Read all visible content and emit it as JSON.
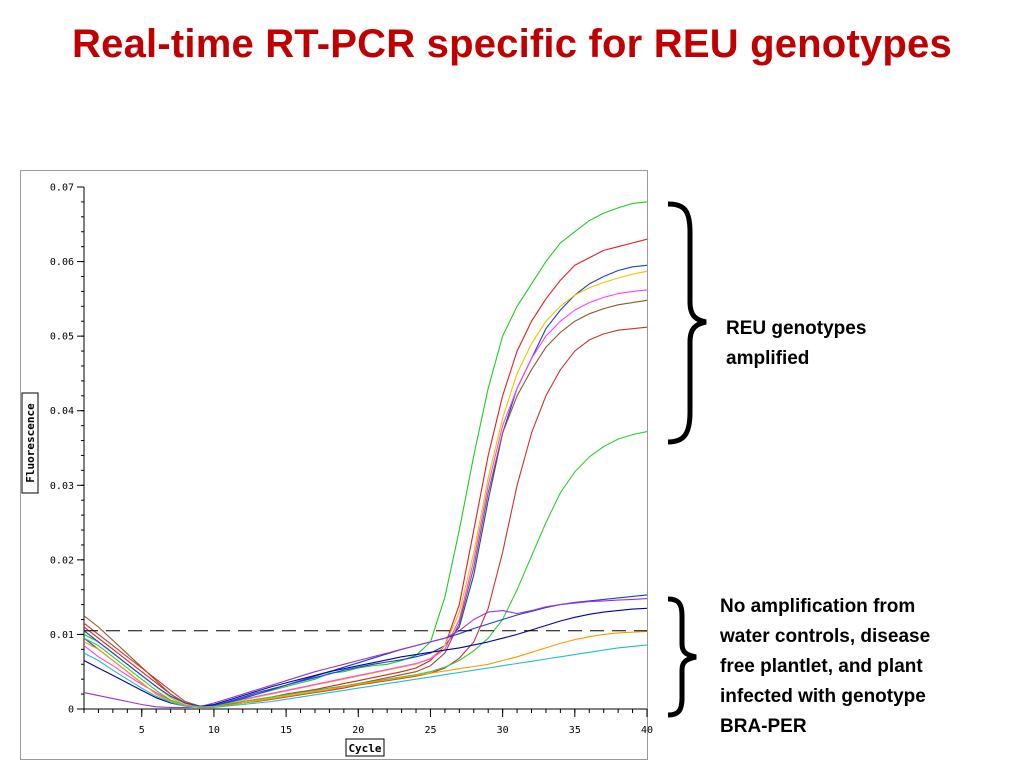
{
  "slide": {
    "title": "Real-time RT-PCR specific for REU genotypes",
    "annotation_amplified": [
      "REU genotypes",
      "amplified"
    ],
    "annotation_not_amplified": [
      "No amplification from",
      "water controls, disease",
      "free plantlet, and plant",
      "infected with genotype",
      "BRA-PER"
    ]
  },
  "chart_data": {
    "type": "line",
    "xlabel": "Cycle",
    "ylabel": "Fluorescence",
    "xlim": [
      1,
      40
    ],
    "ylim": [
      0,
      0.07
    ],
    "xticks": [
      5,
      10,
      15,
      20,
      25,
      30,
      35,
      40
    ],
    "xtick_labels": [
      "5",
      "10",
      "15",
      "20",
      "25",
      "30",
      "35",
      "40"
    ],
    "yticks": [
      0,
      0.01,
      0.02,
      0.03,
      0.04,
      0.05,
      0.06,
      0.07
    ],
    "ytick_labels": [
      "0",
      "0.01",
      "0.02",
      "0.03",
      "0.04",
      "0.05",
      "0.06",
      "0.07"
    ],
    "threshold": 0.0105,
    "grid": false,
    "x": [
      1,
      2,
      3,
      4,
      5,
      6,
      7,
      8,
      9,
      10,
      11,
      12,
      13,
      14,
      15,
      16,
      17,
      18,
      19,
      20,
      21,
      22,
      23,
      24,
      25,
      26,
      27,
      28,
      29,
      30,
      31,
      32,
      33,
      34,
      35,
      36,
      37,
      38,
      39,
      40
    ],
    "series": [
      {
        "color": "#22cc22",
        "values": [
          0.01,
          0.009,
          0.0075,
          0.006,
          0.0045,
          0.003,
          0.0015,
          0.0005,
          0.0002,
          0.0004,
          0.001,
          0.0015,
          0.002,
          0.0025,
          0.003,
          0.0035,
          0.004,
          0.0048,
          0.005,
          0.0055,
          0.0058,
          0.006,
          0.0065,
          0.0072,
          0.009,
          0.015,
          0.024,
          0.034,
          0.043,
          0.05,
          0.054,
          0.057,
          0.06,
          0.0625,
          0.064,
          0.0655,
          0.0665,
          0.0672,
          0.0678,
          0.068
        ]
      },
      {
        "color": "#e02020",
        "values": [
          0.011,
          0.0095,
          0.008,
          0.0065,
          0.005,
          0.0035,
          0.002,
          0.0008,
          0.0003,
          0.0003,
          0.0006,
          0.001,
          0.0013,
          0.0016,
          0.002,
          0.0023,
          0.0026,
          0.003,
          0.0034,
          0.0038,
          0.0042,
          0.0046,
          0.005,
          0.0055,
          0.0065,
          0.0085,
          0.014,
          0.024,
          0.034,
          0.042,
          0.048,
          0.052,
          0.055,
          0.0575,
          0.0595,
          0.0605,
          0.0615,
          0.062,
          0.0625,
          0.063
        ]
      },
      {
        "color": "#1a3fd6",
        "values": [
          0.0095,
          0.008,
          0.0065,
          0.005,
          0.0035,
          0.002,
          0.001,
          0.0004,
          0.0003,
          0.0005,
          0.001,
          0.0016,
          0.0022,
          0.0027,
          0.0032,
          0.0037,
          0.0042,
          0.0047,
          0.0052,
          0.0056,
          0.006,
          0.0063,
          0.0066,
          0.007,
          0.0075,
          0.0085,
          0.011,
          0.018,
          0.028,
          0.037,
          0.043,
          0.047,
          0.051,
          0.0535,
          0.0555,
          0.057,
          0.058,
          0.0588,
          0.0593,
          0.0595
        ]
      },
      {
        "color": "#e8c800",
        "values": [
          0.0105,
          0.009,
          0.0075,
          0.006,
          0.0045,
          0.003,
          0.0015,
          0.0006,
          0.0003,
          0.0004,
          0.0008,
          0.0012,
          0.0016,
          0.002,
          0.0024,
          0.0028,
          0.0032,
          0.0036,
          0.004,
          0.0044,
          0.0048,
          0.0052,
          0.0056,
          0.006,
          0.0068,
          0.0085,
          0.013,
          0.021,
          0.031,
          0.039,
          0.045,
          0.049,
          0.052,
          0.054,
          0.0555,
          0.0565,
          0.0572,
          0.0578,
          0.0583,
          0.0587
        ]
      },
      {
        "color": "#ff40ff",
        "values": [
          0.0085,
          0.007,
          0.0058,
          0.0045,
          0.0033,
          0.0022,
          0.0012,
          0.0005,
          0.0003,
          0.0005,
          0.0009,
          0.0013,
          0.0017,
          0.0021,
          0.0025,
          0.0029,
          0.0033,
          0.0037,
          0.0041,
          0.0045,
          0.0049,
          0.0053,
          0.0057,
          0.0061,
          0.0067,
          0.008,
          0.012,
          0.02,
          0.03,
          0.038,
          0.043,
          0.047,
          0.05,
          0.052,
          0.0535,
          0.0545,
          0.0552,
          0.0557,
          0.056,
          0.0562
        ]
      },
      {
        "color": "#8b5a2b",
        "values": [
          0.0125,
          0.011,
          0.0092,
          0.0074,
          0.0056,
          0.0038,
          0.002,
          0.0008,
          0.0003,
          0.0003,
          0.0005,
          0.0008,
          0.0011,
          0.0014,
          0.0017,
          0.002,
          0.0023,
          0.0026,
          0.003,
          0.0034,
          0.0038,
          0.0042,
          0.0046,
          0.005,
          0.0058,
          0.0075,
          0.0115,
          0.019,
          0.029,
          0.037,
          0.042,
          0.0455,
          0.0485,
          0.0505,
          0.052,
          0.053,
          0.0537,
          0.0542,
          0.0545,
          0.0548
        ]
      },
      {
        "color": "#cc3333",
        "values": [
          0.0115,
          0.01,
          0.0085,
          0.007,
          0.0055,
          0.004,
          0.0025,
          0.001,
          0.0004,
          0.0003,
          0.0005,
          0.0008,
          0.001,
          0.0013,
          0.0016,
          0.0019,
          0.0022,
          0.0025,
          0.0028,
          0.0032,
          0.0035,
          0.0038,
          0.0041,
          0.0044,
          0.0048,
          0.0055,
          0.0068,
          0.009,
          0.0135,
          0.021,
          0.03,
          0.037,
          0.042,
          0.0455,
          0.048,
          0.0495,
          0.0503,
          0.0508,
          0.051,
          0.0512
        ]
      },
      {
        "color": "#33cc33",
        "values": [
          0.0095,
          0.0085,
          0.007,
          0.0055,
          0.004,
          0.0025,
          0.0012,
          0.0005,
          0.0003,
          0.0004,
          0.0007,
          0.001,
          0.0013,
          0.0016,
          0.0019,
          0.0022,
          0.0025,
          0.0028,
          0.0031,
          0.0034,
          0.0037,
          0.004,
          0.0043,
          0.0046,
          0.005,
          0.0056,
          0.0065,
          0.0078,
          0.0095,
          0.012,
          0.016,
          0.0205,
          0.025,
          0.029,
          0.0318,
          0.0338,
          0.0352,
          0.0362,
          0.0368,
          0.0372
        ]
      },
      {
        "color": "#1a3fd6",
        "values": [
          0.0105,
          0.009,
          0.0075,
          0.006,
          0.0045,
          0.003,
          0.0017,
          0.0008,
          0.0004,
          0.0005,
          0.0009,
          0.0014,
          0.002,
          0.0026,
          0.0032,
          0.0038,
          0.0044,
          0.005,
          0.0056,
          0.0062,
          0.0068,
          0.0074,
          0.008,
          0.0085,
          0.009,
          0.0095,
          0.0101,
          0.0108,
          0.0114,
          0.012,
          0.0126,
          0.0131,
          0.0136,
          0.014,
          0.0143,
          0.0145,
          0.0147,
          0.0149,
          0.0151,
          0.0153
        ]
      },
      {
        "color": "#9933cc",
        "values": [
          0.0022,
          0.0018,
          0.0014,
          0.001,
          0.0006,
          0.0003,
          0.0002,
          0.0002,
          0.0003,
          0.0008,
          0.0014,
          0.002,
          0.0026,
          0.0032,
          0.0038,
          0.0044,
          0.005,
          0.0055,
          0.006,
          0.0065,
          0.007,
          0.0075,
          0.008,
          0.0085,
          0.009,
          0.0095,
          0.0105,
          0.012,
          0.013,
          0.0132,
          0.0128,
          0.0132,
          0.0137,
          0.014,
          0.0142,
          0.0144,
          0.0145,
          0.0146,
          0.0147,
          0.0148
        ]
      },
      {
        "color": "#0000aa",
        "values": [
          0.0065,
          0.0055,
          0.0045,
          0.0035,
          0.0025,
          0.0015,
          0.0008,
          0.0004,
          0.0003,
          0.0006,
          0.0012,
          0.0018,
          0.0024,
          0.003,
          0.0035,
          0.004,
          0.0045,
          0.005,
          0.0054,
          0.0058,
          0.0062,
          0.0066,
          0.007,
          0.0073,
          0.0076,
          0.0079,
          0.0082,
          0.0086,
          0.009,
          0.0095,
          0.01,
          0.0106,
          0.0112,
          0.0118,
          0.0123,
          0.0127,
          0.013,
          0.0132,
          0.0134,
          0.0135
        ]
      },
      {
        "color": "#ff9900",
        "values": [
          0.009,
          0.008,
          0.0065,
          0.005,
          0.0035,
          0.002,
          0.001,
          0.0005,
          0.0003,
          0.0003,
          0.0005,
          0.0008,
          0.0011,
          0.0014,
          0.0017,
          0.002,
          0.0023,
          0.0026,
          0.003,
          0.0033,
          0.0036,
          0.0039,
          0.0042,
          0.0045,
          0.0048,
          0.0051,
          0.0054,
          0.0057,
          0.006,
          0.0065,
          0.007,
          0.0076,
          0.0082,
          0.0088,
          0.0093,
          0.0097,
          0.01,
          0.0102,
          0.0103,
          0.0104
        ]
      },
      {
        "color": "#20c0c0",
        "values": [
          0.0075,
          0.0065,
          0.0052,
          0.004,
          0.0028,
          0.0017,
          0.0009,
          0.0004,
          0.0002,
          0.0002,
          0.0004,
          0.0006,
          0.0008,
          0.001,
          0.0013,
          0.0016,
          0.0019,
          0.0022,
          0.0025,
          0.0028,
          0.0031,
          0.0034,
          0.0037,
          0.004,
          0.0043,
          0.0046,
          0.0049,
          0.0052,
          0.0055,
          0.0058,
          0.0061,
          0.0064,
          0.0067,
          0.007,
          0.0073,
          0.0076,
          0.0079,
          0.0082,
          0.0084,
          0.0086
        ]
      }
    ]
  }
}
